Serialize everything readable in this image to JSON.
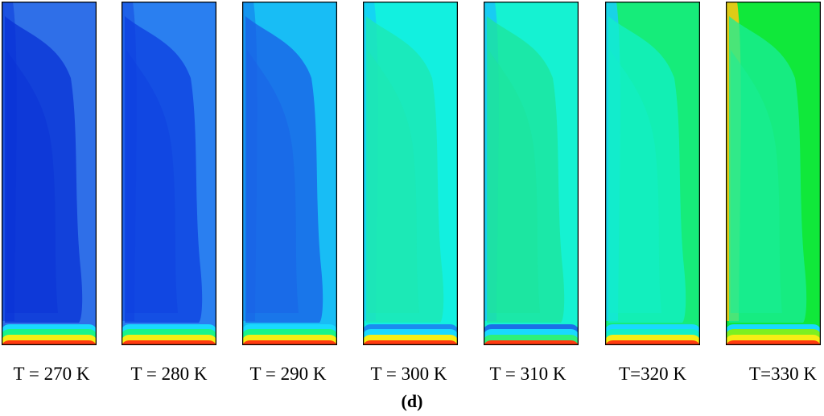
{
  "figure": {
    "sublabel_open": "(",
    "sublabel_letter": "d",
    "sublabel_close": ")"
  },
  "panels": [
    {
      "caption": "T = 270 K",
      "temperature_K": 270,
      "bulk_color": "#2f6fe8",
      "plume_color": "#0a32d6",
      "edge_color": "#1a4fe0",
      "bottom_ring": [
        "#19d9ff",
        "#18f58a",
        "#f6ee14",
        "#ff3a10"
      ]
    },
    {
      "caption": "T = 280 K",
      "temperature_K": 280,
      "bulk_color": "#2a7ff0",
      "plume_color": "#0d3fe0",
      "edge_color": "#1d5ee6",
      "bottom_ring": [
        "#19d9ff",
        "#18f58a",
        "#f6ee14",
        "#ff3a10"
      ]
    },
    {
      "caption": "T = 290 K",
      "temperature_K": 290,
      "bulk_color": "#18bdf5",
      "plume_color": "#1a5fe6",
      "edge_color": "#1590ee",
      "bottom_ring": [
        "#19d9ff",
        "#18f58a",
        "#f6ee14",
        "#ff3a10"
      ]
    },
    {
      "caption": "T = 300 K",
      "temperature_K": 300,
      "bulk_color": "#12f0e0",
      "plume_color": "#1ee8b0",
      "edge_color": "#15d2f5",
      "bottom_ring": [
        "#1a8cf0",
        "#19d9ff",
        "#f6ee14",
        "#ff3a10"
      ]
    },
    {
      "caption": "T = 310 K",
      "temperature_K": 310,
      "bulk_color": "#15f2d2",
      "plume_color": "#1ee49a",
      "edge_color": "#18c8f5",
      "bottom_ring": [
        "#1a6fe8",
        "#19d9ff",
        "#2ef07a",
        "#ff3a10"
      ]
    },
    {
      "caption": "T=320 K",
      "temperature_K": 320,
      "bulk_color": "#16ec7a",
      "plume_color": "#12f0c8",
      "edge_color": "#19d0f2",
      "bottom_ring": [
        "#19d9ff",
        "#12f0c8",
        "#f6ee14",
        "#ff3a10"
      ]
    },
    {
      "caption": "T=330 K",
      "temperature_K": 330,
      "bulk_color": "#10e83a",
      "plume_color": "#18ee9a",
      "edge_color": "#f6c814",
      "bottom_ring": [
        "#19d9ff",
        "#7df020",
        "#f6ee14",
        "#ff3a10"
      ]
    }
  ]
}
